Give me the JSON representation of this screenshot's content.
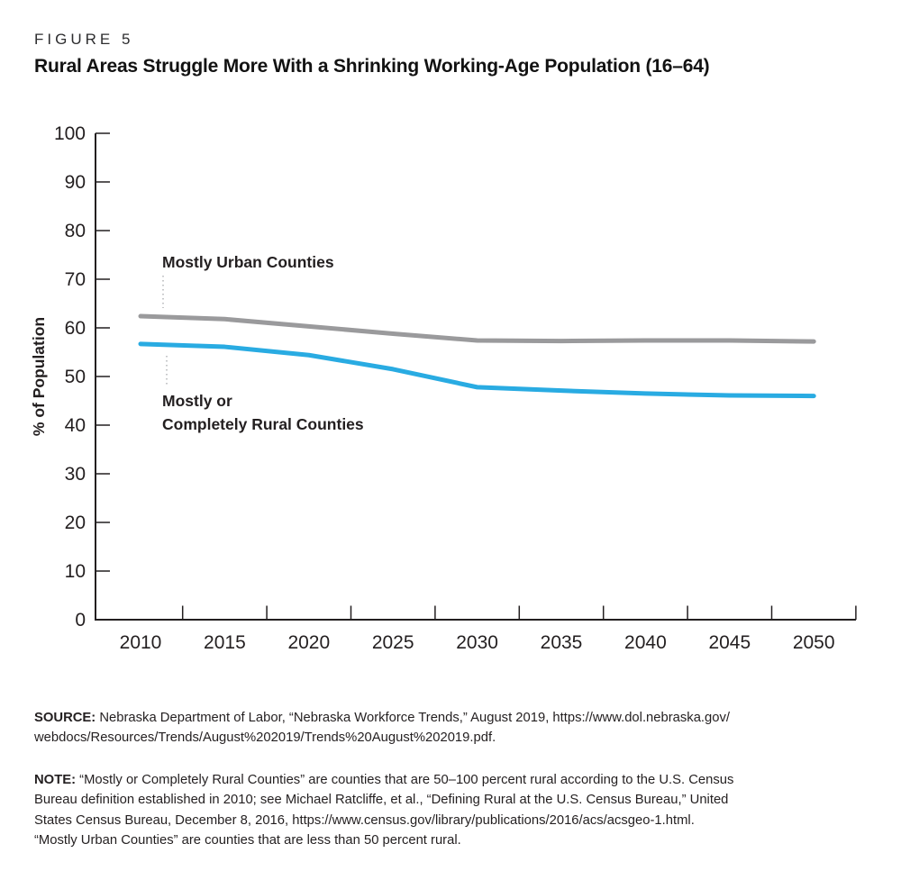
{
  "header": {
    "figure_label": "FIGURE 5",
    "title": "Rural Areas Struggle More With a Shrinking Working-Age Population (16–64)"
  },
  "chart_data": {
    "type": "line",
    "title": "Rural Areas Struggle More With a Shrinking Working-Age Population (16–64)",
    "x": [
      2010,
      2015,
      2020,
      2025,
      2030,
      2035,
      2040,
      2045,
      2050
    ],
    "xlabel": "",
    "ylabel": "% of Population",
    "ylim": [
      0,
      100
    ],
    "ytick_step": 10,
    "grid": false,
    "legend": "inline-annotations",
    "axis_color": "#231f20",
    "leader_color": "#a7a9ac",
    "series": [
      {
        "name": "Mostly Urban Counties",
        "color": "#9a9a9c",
        "values": [
          62.4,
          61.8,
          60.3,
          58.8,
          57.4,
          57.3,
          57.4,
          57.4,
          57.2
        ]
      },
      {
        "name": "Mostly or Completely Rural Counties",
        "color": "#29abe2",
        "values": [
          56.7,
          56.1,
          54.4,
          51.5,
          47.8,
          47.1,
          46.5,
          46.1,
          46.0
        ]
      }
    ],
    "annotations": [
      {
        "lines": [
          "Mostly Urban Counties"
        ],
        "x": 180,
        "y": 297,
        "leader": {
          "x": 181,
          "y1": 306,
          "y2": 342
        }
      },
      {
        "lines": [
          "Mostly or",
          "Completely Rural Counties"
        ],
        "x": 180,
        "y": 451,
        "leader": {
          "x": 185,
          "y1": 395,
          "y2": 427
        }
      }
    ]
  },
  "source": {
    "label": "SOURCE:",
    "text_lines": [
      "Nebraska Department of Labor, “Nebraska Workforce Trends,” August 2019, https://www.dol.nebraska.gov/",
      "webdocs/Resources/Trends/August%202019/Trends%20August%202019.pdf."
    ]
  },
  "note": {
    "label": "NOTE:",
    "text_lines": [
      "“Mostly or Completely Rural Counties” are counties that are 50–100 percent rural according to the U.S. Census",
      "Bureau definition established in 2010; see Michael Ratcliffe, et al., “Defining Rural at the U.S. Census Bureau,” United",
      "States Census Bureau, December 8, 2016, https://www.census.gov/library/publications/2016/acs/acsgeo-1.html.",
      "“Mostly Urban Counties” are counties that are less than 50 percent rural."
    ]
  }
}
